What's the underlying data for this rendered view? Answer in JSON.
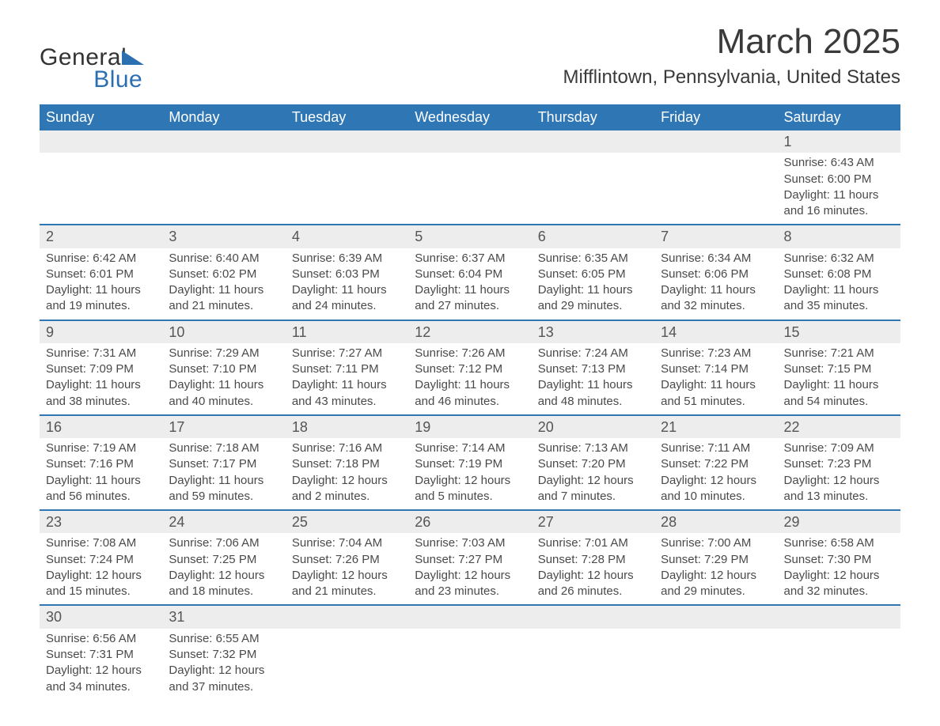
{
  "brand": {
    "general": "General",
    "blue": "Blue"
  },
  "header": {
    "title": "March 2025",
    "location": "Mifflintown, Pennsylvania, United States"
  },
  "style": {
    "header_bg": "#2f76b5",
    "header_fg": "#ffffff",
    "daybar_bg": "#ededed",
    "border_color": "#2f76b5",
    "body_bg": "#ffffff",
    "text_color": "#4a4a4a",
    "title_fontsize": 44,
    "location_fontsize": 24,
    "dayhdr_fontsize": 18,
    "cell_fontsize": 15
  },
  "day_headers": [
    "Sunday",
    "Monday",
    "Tuesday",
    "Wednesday",
    "Thursday",
    "Friday",
    "Saturday"
  ],
  "weeks": [
    [
      null,
      null,
      null,
      null,
      null,
      null,
      {
        "n": "1",
        "sr": "Sunrise: 6:43 AM",
        "ss": "Sunset: 6:00 PM",
        "d1": "Daylight: 11 hours",
        "d2": "and 16 minutes."
      }
    ],
    [
      {
        "n": "2",
        "sr": "Sunrise: 6:42 AM",
        "ss": "Sunset: 6:01 PM",
        "d1": "Daylight: 11 hours",
        "d2": "and 19 minutes."
      },
      {
        "n": "3",
        "sr": "Sunrise: 6:40 AM",
        "ss": "Sunset: 6:02 PM",
        "d1": "Daylight: 11 hours",
        "d2": "and 21 minutes."
      },
      {
        "n": "4",
        "sr": "Sunrise: 6:39 AM",
        "ss": "Sunset: 6:03 PM",
        "d1": "Daylight: 11 hours",
        "d2": "and 24 minutes."
      },
      {
        "n": "5",
        "sr": "Sunrise: 6:37 AM",
        "ss": "Sunset: 6:04 PM",
        "d1": "Daylight: 11 hours",
        "d2": "and 27 minutes."
      },
      {
        "n": "6",
        "sr": "Sunrise: 6:35 AM",
        "ss": "Sunset: 6:05 PM",
        "d1": "Daylight: 11 hours",
        "d2": "and 29 minutes."
      },
      {
        "n": "7",
        "sr": "Sunrise: 6:34 AM",
        "ss": "Sunset: 6:06 PM",
        "d1": "Daylight: 11 hours",
        "d2": "and 32 minutes."
      },
      {
        "n": "8",
        "sr": "Sunrise: 6:32 AM",
        "ss": "Sunset: 6:08 PM",
        "d1": "Daylight: 11 hours",
        "d2": "and 35 minutes."
      }
    ],
    [
      {
        "n": "9",
        "sr": "Sunrise: 7:31 AM",
        "ss": "Sunset: 7:09 PM",
        "d1": "Daylight: 11 hours",
        "d2": "and 38 minutes."
      },
      {
        "n": "10",
        "sr": "Sunrise: 7:29 AM",
        "ss": "Sunset: 7:10 PM",
        "d1": "Daylight: 11 hours",
        "d2": "and 40 minutes."
      },
      {
        "n": "11",
        "sr": "Sunrise: 7:27 AM",
        "ss": "Sunset: 7:11 PM",
        "d1": "Daylight: 11 hours",
        "d2": "and 43 minutes."
      },
      {
        "n": "12",
        "sr": "Sunrise: 7:26 AM",
        "ss": "Sunset: 7:12 PM",
        "d1": "Daylight: 11 hours",
        "d2": "and 46 minutes."
      },
      {
        "n": "13",
        "sr": "Sunrise: 7:24 AM",
        "ss": "Sunset: 7:13 PM",
        "d1": "Daylight: 11 hours",
        "d2": "and 48 minutes."
      },
      {
        "n": "14",
        "sr": "Sunrise: 7:23 AM",
        "ss": "Sunset: 7:14 PM",
        "d1": "Daylight: 11 hours",
        "d2": "and 51 minutes."
      },
      {
        "n": "15",
        "sr": "Sunrise: 7:21 AM",
        "ss": "Sunset: 7:15 PM",
        "d1": "Daylight: 11 hours",
        "d2": "and 54 minutes."
      }
    ],
    [
      {
        "n": "16",
        "sr": "Sunrise: 7:19 AM",
        "ss": "Sunset: 7:16 PM",
        "d1": "Daylight: 11 hours",
        "d2": "and 56 minutes."
      },
      {
        "n": "17",
        "sr": "Sunrise: 7:18 AM",
        "ss": "Sunset: 7:17 PM",
        "d1": "Daylight: 11 hours",
        "d2": "and 59 minutes."
      },
      {
        "n": "18",
        "sr": "Sunrise: 7:16 AM",
        "ss": "Sunset: 7:18 PM",
        "d1": "Daylight: 12 hours",
        "d2": "and 2 minutes."
      },
      {
        "n": "19",
        "sr": "Sunrise: 7:14 AM",
        "ss": "Sunset: 7:19 PM",
        "d1": "Daylight: 12 hours",
        "d2": "and 5 minutes."
      },
      {
        "n": "20",
        "sr": "Sunrise: 7:13 AM",
        "ss": "Sunset: 7:20 PM",
        "d1": "Daylight: 12 hours",
        "d2": "and 7 minutes."
      },
      {
        "n": "21",
        "sr": "Sunrise: 7:11 AM",
        "ss": "Sunset: 7:22 PM",
        "d1": "Daylight: 12 hours",
        "d2": "and 10 minutes."
      },
      {
        "n": "22",
        "sr": "Sunrise: 7:09 AM",
        "ss": "Sunset: 7:23 PM",
        "d1": "Daylight: 12 hours",
        "d2": "and 13 minutes."
      }
    ],
    [
      {
        "n": "23",
        "sr": "Sunrise: 7:08 AM",
        "ss": "Sunset: 7:24 PM",
        "d1": "Daylight: 12 hours",
        "d2": "and 15 minutes."
      },
      {
        "n": "24",
        "sr": "Sunrise: 7:06 AM",
        "ss": "Sunset: 7:25 PM",
        "d1": "Daylight: 12 hours",
        "d2": "and 18 minutes."
      },
      {
        "n": "25",
        "sr": "Sunrise: 7:04 AM",
        "ss": "Sunset: 7:26 PM",
        "d1": "Daylight: 12 hours",
        "d2": "and 21 minutes."
      },
      {
        "n": "26",
        "sr": "Sunrise: 7:03 AM",
        "ss": "Sunset: 7:27 PM",
        "d1": "Daylight: 12 hours",
        "d2": "and 23 minutes."
      },
      {
        "n": "27",
        "sr": "Sunrise: 7:01 AM",
        "ss": "Sunset: 7:28 PM",
        "d1": "Daylight: 12 hours",
        "d2": "and 26 minutes."
      },
      {
        "n": "28",
        "sr": "Sunrise: 7:00 AM",
        "ss": "Sunset: 7:29 PM",
        "d1": "Daylight: 12 hours",
        "d2": "and 29 minutes."
      },
      {
        "n": "29",
        "sr": "Sunrise: 6:58 AM",
        "ss": "Sunset: 7:30 PM",
        "d1": "Daylight: 12 hours",
        "d2": "and 32 minutes."
      }
    ],
    [
      {
        "n": "30",
        "sr": "Sunrise: 6:56 AM",
        "ss": "Sunset: 7:31 PM",
        "d1": "Daylight: 12 hours",
        "d2": "and 34 minutes."
      },
      {
        "n": "31",
        "sr": "Sunrise: 6:55 AM",
        "ss": "Sunset: 7:32 PM",
        "d1": "Daylight: 12 hours",
        "d2": "and 37 minutes."
      },
      null,
      null,
      null,
      null,
      null
    ]
  ]
}
